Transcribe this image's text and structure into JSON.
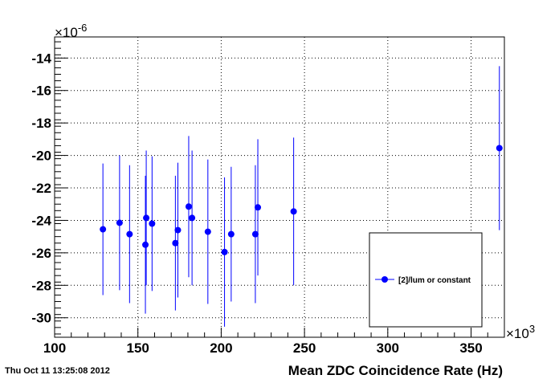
{
  "timestamp": "Thu Oct 11 13:25:08 2012",
  "chart_data": {
    "type": "scatter",
    "title": "",
    "xlabel": "Mean ZDC Coincidence Rate (Hz)",
    "ylabel": "",
    "x_multiplier_label": "×10",
    "x_multiplier_exp": "3",
    "y_multiplier_label": "×10",
    "y_multiplier_exp": "-6",
    "xlim": [
      100,
      370
    ],
    "ylim": [
      -31.2,
      -12.7
    ],
    "x_ticks": [
      100,
      150,
      200,
      250,
      300,
      350
    ],
    "x_tick_labels": [
      "100",
      "150",
      "200",
      "250",
      "300",
      "350"
    ],
    "y_ticks": [
      -30,
      -28,
      -26,
      -24,
      -22,
      -20,
      -18,
      -16,
      -14
    ],
    "y_tick_labels": [
      "-30",
      "-28",
      "-26",
      "-24",
      "-22",
      "-20",
      "-18",
      "-16",
      "-14"
    ],
    "grid": true,
    "legend_position": "bottom-right",
    "series": [
      {
        "name": "[2]/lum or constant",
        "color": "#0000ff",
        "points": [
          {
            "x": 129,
            "y": -24.55,
            "err": 4.05
          },
          {
            "x": 139,
            "y": -24.15,
            "err": 4.15
          },
          {
            "x": 145,
            "y": -24.85,
            "err": 4.25
          },
          {
            "x": 154.5,
            "y": -25.5,
            "err": 4.25
          },
          {
            "x": 155,
            "y": -23.85,
            "err": 4.15
          },
          {
            "x": 158.5,
            "y": -24.2,
            "err": 4.15
          },
          {
            "x": 172.5,
            "y": -25.4,
            "err": 4.15
          },
          {
            "x": 174,
            "y": -24.6,
            "err": 4.15
          },
          {
            "x": 180.5,
            "y": -23.15,
            "err": 4.35
          },
          {
            "x": 182.5,
            "y": -23.85,
            "err": 4.15
          },
          {
            "x": 192,
            "y": -24.7,
            "err": 4.45
          },
          {
            "x": 202,
            "y": -25.95,
            "err": 4.6
          },
          {
            "x": 206,
            "y": -24.85,
            "err": 4.15
          },
          {
            "x": 220.5,
            "y": -24.85,
            "err": 4.25
          },
          {
            "x": 222,
            "y": -23.2,
            "err": 4.2
          },
          {
            "x": 243.5,
            "y": -23.45,
            "err": 4.55
          },
          {
            "x": 367,
            "y": -19.55,
            "err": 5.05
          }
        ]
      }
    ]
  }
}
